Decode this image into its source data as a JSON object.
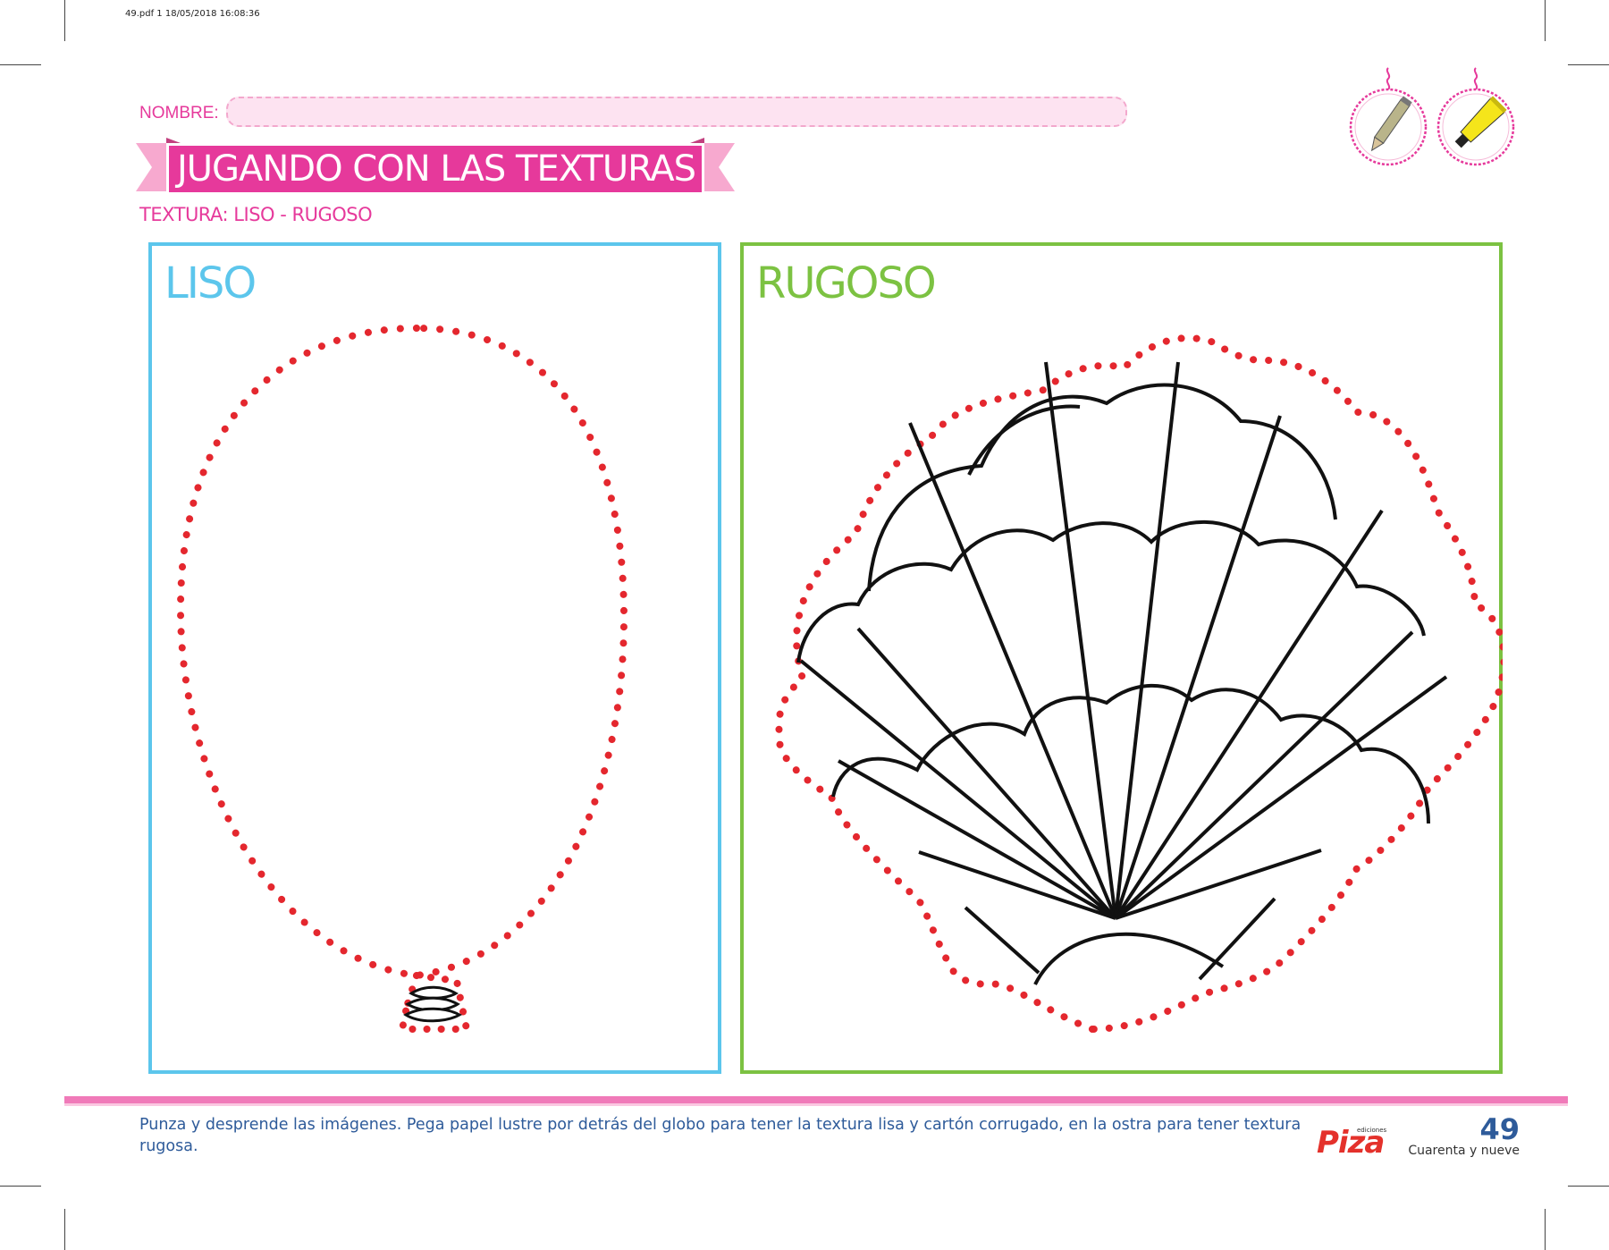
{
  "print_header": "49.pdf   1   18/05/2018   16:08:36",
  "nombre": {
    "label": "NOMBRE:",
    "value": ""
  },
  "title": "JUGANDO CON LAS TEXTURAS",
  "subtitle": "TEXTURA: LISO - RUGOSO",
  "tools": [
    {
      "icon": "pencil-icon"
    },
    {
      "icon": "glue-tube-icon"
    }
  ],
  "panels": {
    "liso": {
      "title": "LISO",
      "color": "#5cc6ec",
      "drawing": "balloon-outline"
    },
    "rugoso": {
      "title": "RUGOSO",
      "color": "#7cc242",
      "drawing": "shell-outline"
    }
  },
  "instructions": "Punza y desprende las imágenes. Pega papel lustre por detrás del globo para tener la textura lisa y cartón corrugado, en la ostra para tener textura rugosa.",
  "brand": {
    "small": "ediciones",
    "name": "Piza"
  },
  "page": {
    "number": "49",
    "words": "Cuarenta y nueve"
  },
  "colors": {
    "pink": "#e6399b",
    "dots": "#e4272e",
    "text_blue": "#2e5b9a"
  }
}
